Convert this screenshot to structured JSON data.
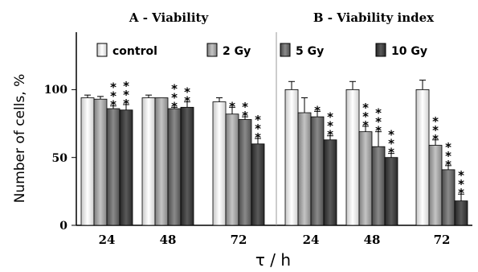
{
  "chart_data": {
    "type": "bar",
    "ylabel": "Number of cells, %",
    "xlabel": "τ / h",
    "ylim": [
      0,
      140
    ],
    "yticks": [
      "0",
      "50",
      "100"
    ],
    "grid": false,
    "legend_position": "top",
    "series_names": [
      "control",
      "2 Gy",
      "5 Gy",
      "10 Gy"
    ],
    "series_colors": [
      "#f0f0f0",
      "#a8a8a8",
      "#6a6a6a",
      "#3c3c3c"
    ],
    "panels": [
      {
        "title": "A - Viability",
        "categories": [
          "24",
          "48",
          "72"
        ],
        "series": [
          {
            "name": "control",
            "values": [
              94,
              94,
              91
            ],
            "errors": [
              2,
              2,
              3
            ]
          },
          {
            "name": "2 Gy",
            "values": [
              93,
              94,
              82
            ],
            "errors": [
              2,
              0,
              5
            ]
          },
          {
            "name": "5 Gy",
            "values": [
              86,
              86,
              78
            ],
            "errors": [
              2,
              1,
              2
            ]
          },
          {
            "name": "10 Gy",
            "values": [
              85,
              87,
              60
            ],
            "errors": [
              4,
              4,
              4
            ]
          }
        ],
        "significance": [
          [
            "",
            "",
            "***",
            "***"
          ],
          [
            "",
            "",
            "***",
            "**"
          ],
          [
            "",
            "*",
            "**",
            "***"
          ]
        ]
      },
      {
        "title": "B - Viability index",
        "categories": [
          "24",
          "48",
          "72"
        ],
        "series": [
          {
            "name": "control",
            "values": [
              100,
              100,
              100
            ],
            "errors": [
              6,
              6,
              7
            ]
          },
          {
            "name": "2 Gy",
            "values": [
              83,
              69,
              59
            ],
            "errors": [
              11,
              4,
              4
            ]
          },
          {
            "name": "5 Gy",
            "values": [
              80,
              58,
              41
            ],
            "errors": [
              4,
              11,
              3
            ]
          },
          {
            "name": "10 Gy",
            "values": [
              63,
              50,
              18
            ],
            "errors": [
              3,
              3,
              5
            ]
          }
        ],
        "significance": [
          [
            "",
            "",
            "*",
            "***"
          ],
          [
            "",
            "***",
            "***",
            "***"
          ],
          [
            "",
            "***",
            "***",
            "***"
          ]
        ]
      }
    ]
  }
}
